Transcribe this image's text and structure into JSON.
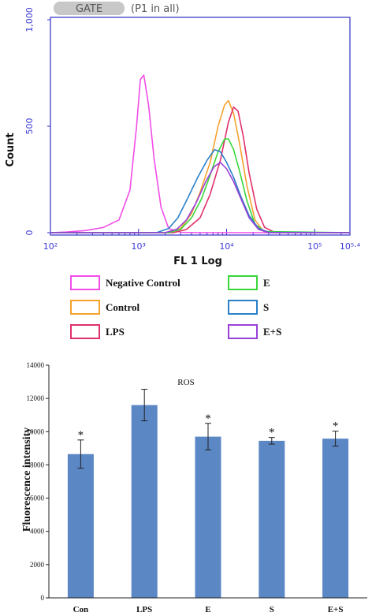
{
  "flow_panel": {
    "gate_label": "GATE",
    "gate_info": "(P1 in all)"
  },
  "chart_data": [
    {
      "type": "line",
      "title": "",
      "xlabel": "FL 1 Log",
      "ylabel": "Count",
      "x_scale": "log",
      "xlim": [
        100,
        251189
      ],
      "ylim": [
        0,
        1000
      ],
      "y_ticks": [
        "0",
        "500",
        "1,000"
      ],
      "x_tick_labels": [
        "10²",
        "10³",
        "10⁴",
        "10⁵",
        "10⁵·⁴"
      ],
      "x_tick_values": [
        100,
        1000,
        10000,
        100000,
        251189
      ],
      "legend_position": "bottom",
      "series": [
        {
          "name": "Negative Control",
          "color": "#f04ee8",
          "points": [
            [
              100,
              0
            ],
            [
              150,
              3
            ],
            [
              250,
              10
            ],
            [
              400,
              25
            ],
            [
              600,
              60
            ],
            [
              800,
              200
            ],
            [
              950,
              500
            ],
            [
              1050,
              720
            ],
            [
              1150,
              740
            ],
            [
              1300,
              600
            ],
            [
              1500,
              350
            ],
            [
              1800,
              120
            ],
            [
              2200,
              20
            ],
            [
              3000,
              2
            ],
            [
              5000,
              0
            ],
            [
              250000,
              0
            ]
          ]
        },
        {
          "name": "Control",
          "color": "#f7a12e",
          "points": [
            [
              100,
              0
            ],
            [
              2000,
              0
            ],
            [
              3000,
              20
            ],
            [
              4000,
              90
            ],
            [
              5000,
              190
            ],
            [
              6500,
              330
            ],
            [
              8000,
              500
            ],
            [
              9500,
              600
            ],
            [
              10500,
              620
            ],
            [
              12000,
              560
            ],
            [
              14000,
              420
            ],
            [
              17000,
              220
            ],
            [
              21000,
              60
            ],
            [
              26000,
              8
            ],
            [
              35000,
              0
            ],
            [
              250000,
              0
            ]
          ]
        },
        {
          "name": "LPS",
          "color": "#e0306a",
          "points": [
            [
              100,
              0
            ],
            [
              2500,
              0
            ],
            [
              3500,
              15
            ],
            [
              5000,
              70
            ],
            [
              6500,
              180
            ],
            [
              8500,
              340
            ],
            [
              10500,
              520
            ],
            [
              12000,
              590
            ],
            [
              13500,
              570
            ],
            [
              15500,
              450
            ],
            [
              18000,
              280
            ],
            [
              22000,
              110
            ],
            [
              27000,
              25
            ],
            [
              35000,
              2
            ],
            [
              250000,
              0
            ]
          ]
        },
        {
          "name": "E",
          "color": "#3ad63a",
          "points": [
            [
              100,
              0
            ],
            [
              2200,
              0
            ],
            [
              3000,
              15
            ],
            [
              4000,
              70
            ],
            [
              5200,
              160
            ],
            [
              6500,
              270
            ],
            [
              8000,
              380
            ],
            [
              9500,
              440
            ],
            [
              10500,
              440
            ],
            [
              12000,
              390
            ],
            [
              14000,
              290
            ],
            [
              17000,
              150
            ],
            [
              21000,
              40
            ],
            [
              27000,
              5
            ],
            [
              250000,
              0
            ]
          ]
        },
        {
          "name": "S",
          "color": "#2a7fc8",
          "points": [
            [
              100,
              0
            ],
            [
              1600,
              0
            ],
            [
              2200,
              20
            ],
            [
              2800,
              70
            ],
            [
              3600,
              160
            ],
            [
              4700,
              260
            ],
            [
              6000,
              340
            ],
            [
              7300,
              390
            ],
            [
              8500,
              380
            ],
            [
              10000,
              330
            ],
            [
              12000,
              260
            ],
            [
              14500,
              170
            ],
            [
              18000,
              80
            ],
            [
              23000,
              20
            ],
            [
              30000,
              2
            ],
            [
              250000,
              0
            ]
          ]
        },
        {
          "name": "E+S",
          "color": "#9a40d8",
          "points": [
            [
              100,
              0
            ],
            [
              2000,
              0
            ],
            [
              2700,
              15
            ],
            [
              3500,
              60
            ],
            [
              4500,
              140
            ],
            [
              5800,
              240
            ],
            [
              7200,
              310
            ],
            [
              8500,
              330
            ],
            [
              10000,
              300
            ],
            [
              12000,
              240
            ],
            [
              14500,
              160
            ],
            [
              18000,
              70
            ],
            [
              23000,
              15
            ],
            [
              30000,
              0
            ],
            [
              250000,
              0
            ]
          ]
        }
      ]
    },
    {
      "type": "bar",
      "title": "ROS",
      "xlabel": "",
      "ylabel": "Fluorescence intensity",
      "ylim": [
        0,
        14000
      ],
      "y_ticks": [
        "0",
        "2000",
        "4000",
        "6000",
        "8000",
        "10000",
        "12000",
        "14000"
      ],
      "categories": [
        "Con",
        "LPS",
        "E",
        "S",
        "E+S"
      ],
      "values": [
        8650,
        11600,
        9700,
        9450,
        9580
      ],
      "errors": [
        850,
        950,
        800,
        200,
        450
      ],
      "significance": [
        "*",
        "",
        "*",
        "*",
        "*"
      ],
      "bar_color": "#5b87c5",
      "grid": false
    }
  ],
  "flow_legend_items": [
    {
      "label": "Negative Control",
      "color": "#f04ee8"
    },
    {
      "label": "E",
      "color": "#3ad63a"
    },
    {
      "label": "Control",
      "color": "#f7a12e"
    },
    {
      "label": "S",
      "color": "#2a7fc8"
    },
    {
      "label": "LPS",
      "color": "#e0306a"
    },
    {
      "label": "E+S",
      "color": "#9a40d8"
    }
  ]
}
